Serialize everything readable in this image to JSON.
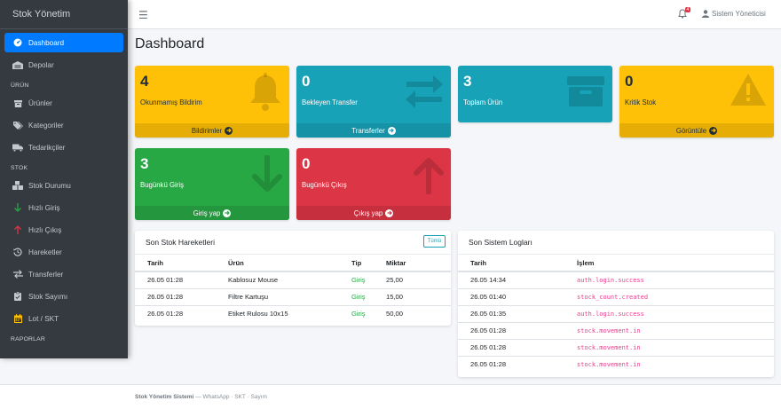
{
  "brand": "Stok Yönetim",
  "topbar": {
    "notification_count": "4",
    "user_name": "Sistem Yöneticisi"
  },
  "sidebar": {
    "items": [
      {
        "label": "Dashboard",
        "icon": "gauge-icon",
        "active": true
      },
      {
        "label": "Depolar",
        "icon": "warehouse-icon"
      }
    ],
    "section_urun": "ÜRÜN",
    "urun_items": [
      {
        "label": "Ürünler",
        "icon": "box-icon"
      },
      {
        "label": "Kategoriler",
        "icon": "tags-icon"
      },
      {
        "label": "Tedarikçiler",
        "icon": "truck-icon"
      }
    ],
    "section_stok": "STOK",
    "stok_items": [
      {
        "label": "Stok Durumu",
        "icon": "boxes-icon"
      },
      {
        "label": "Hızlı Giriş",
        "icon": "arrow-down-icon"
      },
      {
        "label": "Hızlı Çıkış",
        "icon": "arrow-up-icon"
      },
      {
        "label": "Hareketler",
        "icon": "history-icon"
      },
      {
        "label": "Transferler",
        "icon": "exchange-icon"
      },
      {
        "label": "Stok Sayımı",
        "icon": "clipboard-check-icon"
      },
      {
        "label": "Lot / SKT",
        "icon": "calendar-icon"
      }
    ],
    "section_raporlar": "RAPORLAR"
  },
  "page_title": "Dashboard",
  "boxes": [
    {
      "value": "4",
      "label": "Okunmamış Bildirim",
      "footer": "Bildirimler",
      "icon": "bell-icon",
      "color": "#ffc107"
    },
    {
      "value": "0",
      "label": "Bekleyen Transfer",
      "footer": "Transferler",
      "icon": "exchange-icon",
      "color": "#17a2b8"
    },
    {
      "value": "3",
      "label": "Toplam Ürün",
      "footer": "",
      "icon": "box-icon",
      "color": "#17a2b8"
    },
    {
      "value": "0",
      "label": "Kritik Stok",
      "footer": "Görüntüle",
      "icon": "warning-icon",
      "color": "#ffc107"
    },
    {
      "value": "3",
      "label": "Bugünkü Giriş",
      "footer": "Giriş yap",
      "icon": "arrow-down-icon",
      "color": "#28a745"
    },
    {
      "value": "0",
      "label": "Bugünkü Çıkış",
      "footer": "Çıkış yap",
      "icon": "arrow-up-icon",
      "color": "#dc3545"
    }
  ],
  "movements": {
    "title": "Son Stok Hareketleri",
    "all_button": "Tümü",
    "columns": [
      "Tarih",
      "Ürün",
      "Tip",
      "Miktar"
    ],
    "rows": [
      [
        "26.05 01:28",
        "Kablosuz Mouse",
        "Giriş",
        "25,00"
      ],
      [
        "26.05 01:28",
        "Filtre Kartuşu",
        "Giriş",
        "15,00"
      ],
      [
        "26.05 01:28",
        "Etiket Rulosu 10x15",
        "Giriş",
        "50,00"
      ]
    ]
  },
  "logs": {
    "title": "Son Sistem Logları",
    "columns": [
      "Tarih",
      "İşlem"
    ],
    "rows": [
      [
        "26.05 14:34",
        "auth.login.success"
      ],
      [
        "26.05 01:40",
        "stock_count.created"
      ],
      [
        "26.05 01:35",
        "auth.login.success"
      ],
      [
        "26.05 01:28",
        "stock.movement.in"
      ],
      [
        "26.05 01:28",
        "stock.movement.in"
      ],
      [
        "26.05 01:28",
        "stock.movement.in"
      ]
    ]
  },
  "footer": {
    "app": "Stok Yönetim Sistemi",
    "rest": " — WhatsApp · SKT · Sayım"
  }
}
